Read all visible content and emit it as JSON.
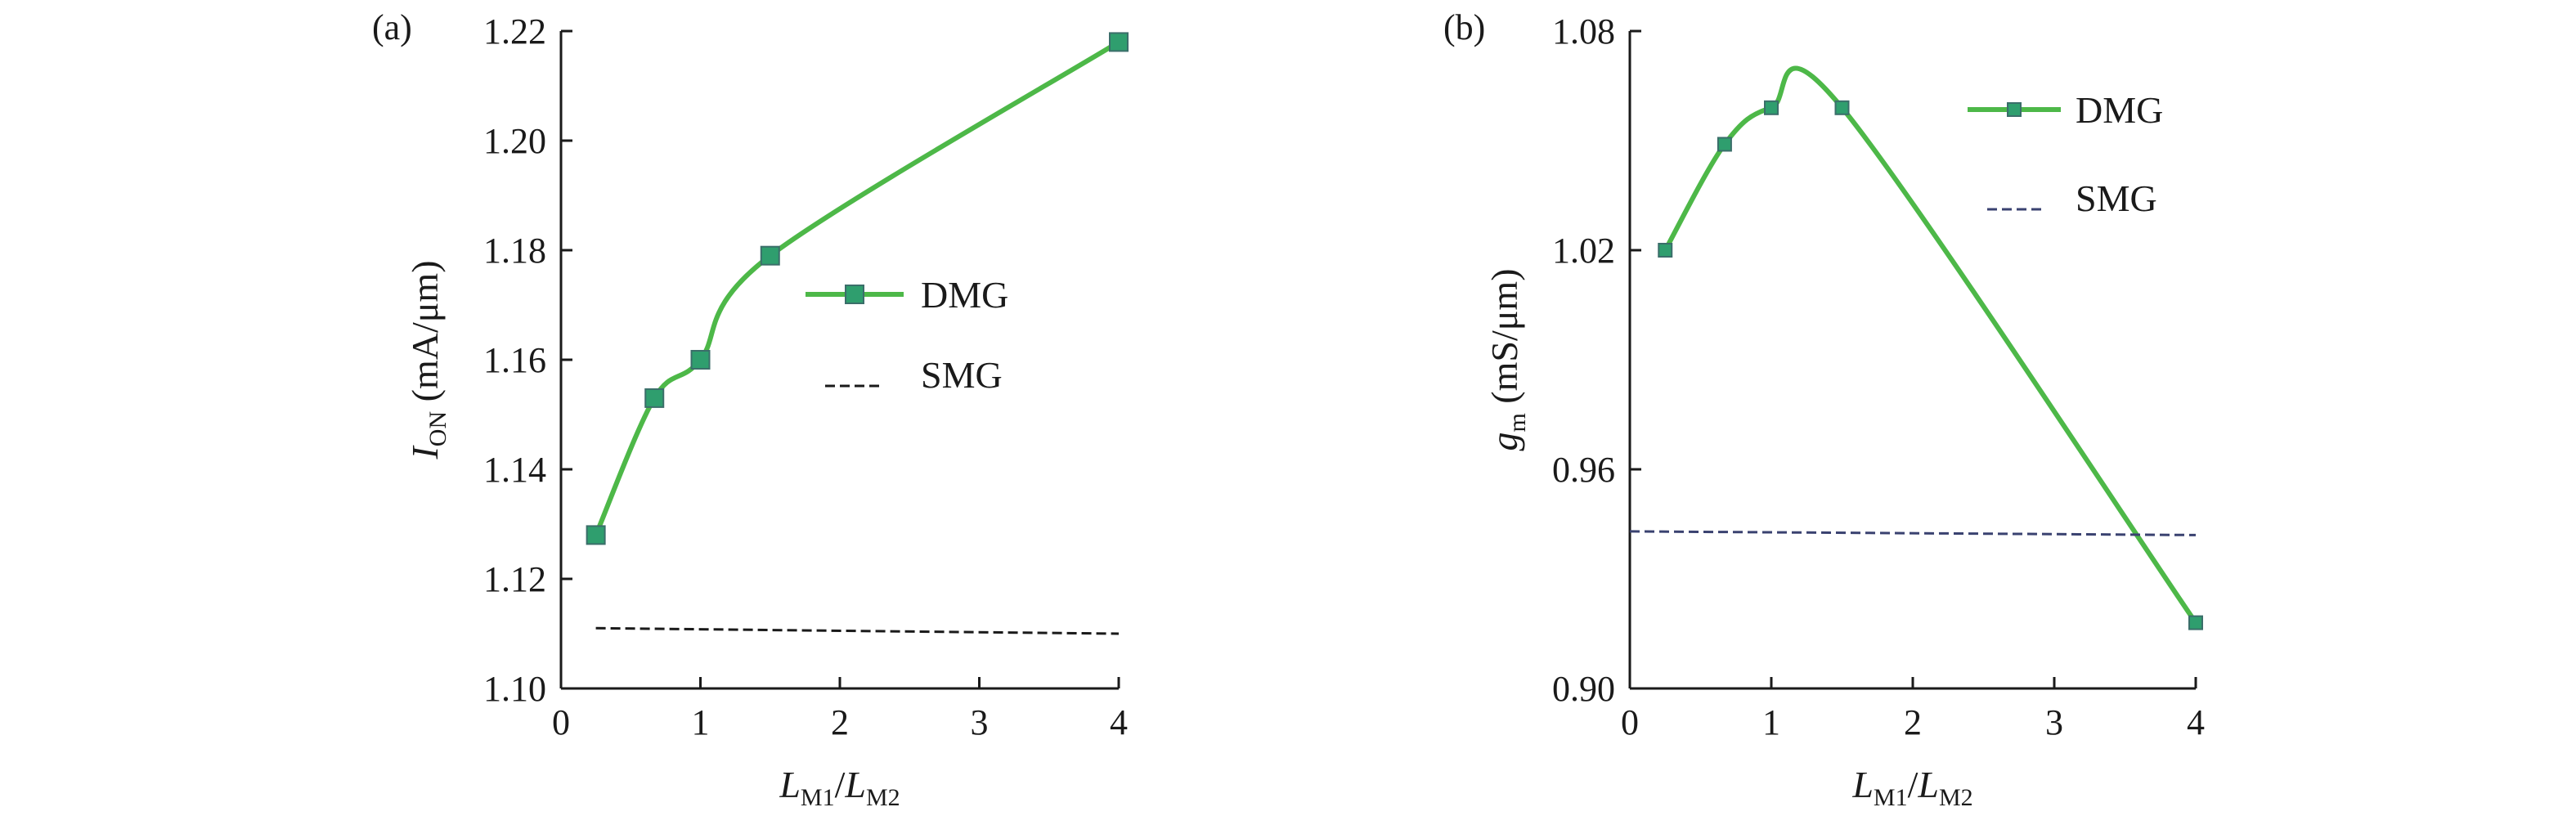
{
  "chart_data": [
    {
      "panel": "(a)",
      "type": "line",
      "xlabel": {
        "main": "L",
        "sub1": "M1",
        "slash": "/",
        "main2": "L",
        "sub2": "M2"
      },
      "ylabel": {
        "main": "I",
        "sub": "ON",
        "rest": " (mA/μm)"
      },
      "xlim": [
        0,
        4
      ],
      "ylim": [
        1.1,
        1.22
      ],
      "xticks": [
        0,
        1,
        2,
        3,
        4
      ],
      "xtick_labels": [
        "0",
        "1",
        "2",
        "3",
        "4"
      ],
      "yticks": [
        1.1,
        1.12,
        1.14,
        1.16,
        1.18,
        1.2,
        1.22
      ],
      "ytick_labels": [
        "1.10",
        "1.12",
        "1.14",
        "1.16",
        "1.18",
        "1.20",
        "1.22"
      ],
      "legend_position": "center-right",
      "series": [
        {
          "name": "DMG",
          "style": "solid-markers",
          "color": "#4db848",
          "marker_color": "#2f9e6e",
          "x": [
            0.25,
            0.67,
            1.0,
            1.5,
            4.0
          ],
          "y": [
            1.128,
            1.153,
            1.16,
            1.179,
            1.218
          ]
        },
        {
          "name": "SMG",
          "style": "dashed",
          "color": "#1a1a1a",
          "x": [
            0.25,
            4.0
          ],
          "y": [
            1.111,
            1.11
          ]
        }
      ]
    },
    {
      "panel": "(b)",
      "type": "line",
      "xlabel": {
        "main": "L",
        "sub1": "M1",
        "slash": "/",
        "main2": "L",
        "sub2": "M2"
      },
      "ylabel": {
        "main": "g",
        "sub": "m",
        "rest": " (mS/μm)"
      },
      "xlim": [
        0,
        4
      ],
      "ylim": [
        0.9,
        1.08
      ],
      "xticks": [
        0,
        1,
        2,
        3,
        4
      ],
      "xtick_labels": [
        "0",
        "1",
        "2",
        "3",
        "4"
      ],
      "yticks": [
        0.9,
        0.96,
        1.02,
        1.08
      ],
      "ytick_labels": [
        "0.90",
        "0.96",
        "1.02",
        "1.08"
      ],
      "legend_position": "top-right",
      "series": [
        {
          "name": "DMG",
          "style": "solid-markers",
          "color": "#4db848",
          "marker_color": "#2f9e6e",
          "x": [
            0.25,
            0.67,
            1.0,
            1.5,
            4.0
          ],
          "y": [
            1.02,
            1.049,
            1.059,
            1.059,
            0.918
          ]
        },
        {
          "name": "SMG",
          "style": "dashed",
          "color": "#3a4270",
          "x": [
            0.0,
            4.0
          ],
          "y": [
            0.943,
            0.942
          ]
        }
      ]
    }
  ]
}
